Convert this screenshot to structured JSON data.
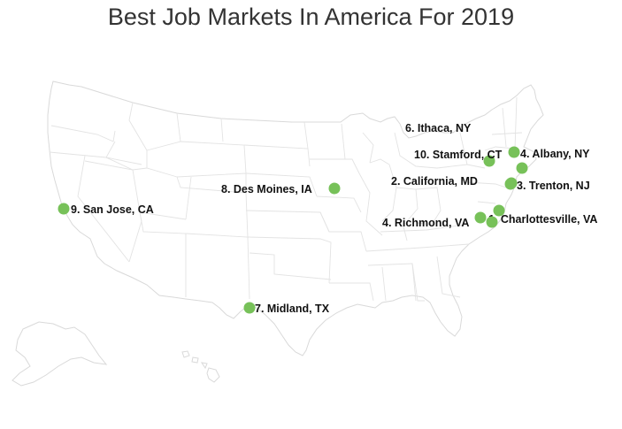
{
  "title": "Best Job Markets In America For 2019",
  "marker_color": "#77c159",
  "markers": [
    {
      "label": "1. Charlottesville, VA"
    },
    {
      "label": "2. California, MD"
    },
    {
      "label": "3. Trenton, NJ"
    },
    {
      "label": "4. Albany, NY"
    },
    {
      "label": "4. Richmond, VA"
    },
    {
      "label": "6. Ithaca, NY"
    },
    {
      "label": "7. Midland, TX"
    },
    {
      "label": "8. Des Moines, IA"
    },
    {
      "label": "9. San Jose, CA"
    },
    {
      "label": "10. Stamford, CT"
    }
  ]
}
